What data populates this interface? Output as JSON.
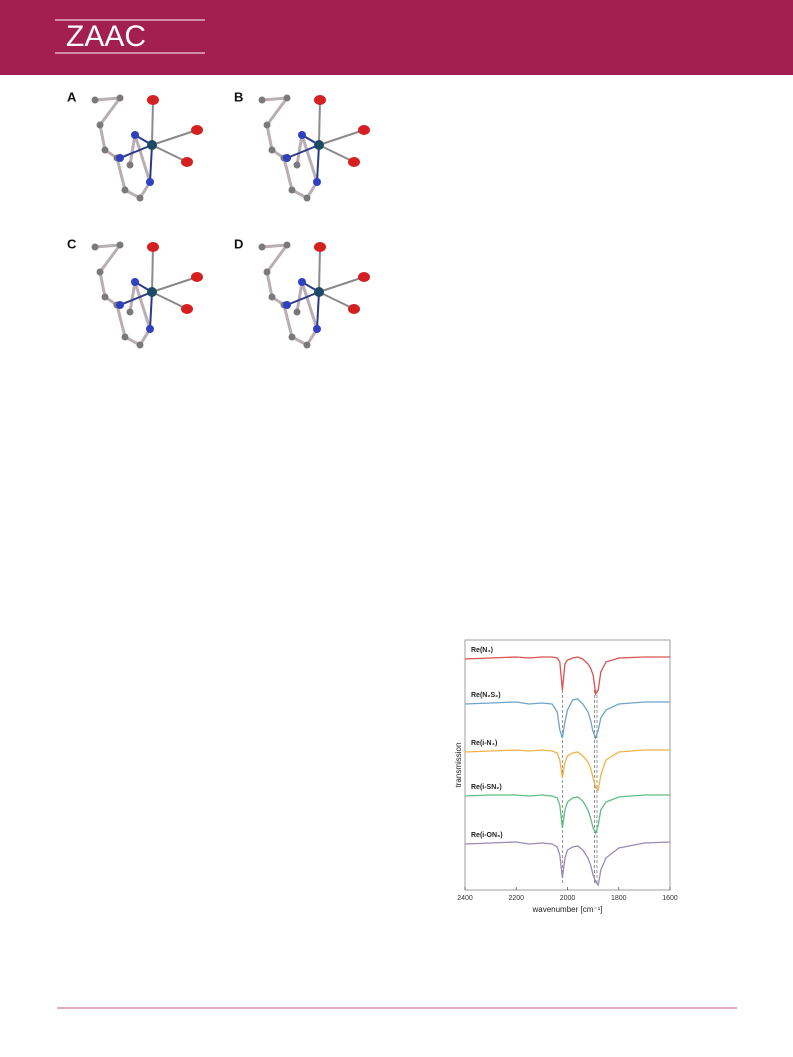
{
  "header": {
    "title": "ZAAC"
  },
  "figure_1": {
    "panels": [
      "A",
      "B",
      "C",
      "D"
    ]
  },
  "chart_data": {
    "type": "line",
    "x_label": "wavenumber [cm⁻¹]",
    "y_label": "transmission",
    "x": [
      2400,
      2300,
      2200,
      2150,
      2100,
      2060,
      2040,
      2030,
      2020,
      2010,
      2000,
      1980,
      1960,
      1940,
      1920,
      1910,
      1900,
      1890,
      1880,
      1870,
      1850,
      1800,
      1700,
      1600
    ],
    "xlim": [
      2400,
      1600
    ],
    "xticks": [
      2400,
      2200,
      2000,
      1800,
      1600
    ],
    "ylim": [
      0,
      250
    ],
    "reference_lines": [
      2020,
      1895,
      1885
    ],
    "series": [
      {
        "name": "Re(N₄)",
        "color": "#d9534f",
        "values": [
          231,
          232,
          233,
          232,
          233,
          233,
          232,
          228,
          200,
          226,
          230,
          232,
          233,
          231,
          226,
          222,
          215,
          196,
          200,
          218,
          228,
          232,
          233,
          233
        ]
      },
      {
        "name": "Re(N₂S₂)",
        "color": "#6fa3c8",
        "values": [
          186,
          187,
          188,
          186,
          187,
          186,
          178,
          160,
          152,
          168,
          180,
          190,
          191,
          186,
          178,
          170,
          158,
          152,
          160,
          172,
          180,
          186,
          188,
          188
        ]
      },
      {
        "name": "Re(i-N₄)",
        "color": "#f0b449",
        "values": [
          138,
          139,
          140,
          139,
          140,
          139,
          137,
          130,
          112,
          128,
          134,
          137,
          138,
          134,
          128,
          122,
          112,
          102,
          100,
          115,
          130,
          138,
          140,
          140
        ]
      },
      {
        "name": "Re(i-SN₂)",
        "color": "#5dbf7f",
        "values": [
          94,
          95,
          95,
          94,
          95,
          94,
          92,
          85,
          62,
          80,
          88,
          92,
          93,
          89,
          80,
          72,
          62,
          57,
          65,
          80,
          88,
          93,
          95,
          95
        ]
      },
      {
        "name": "Re(i-ON₃)",
        "color": "#9a8ab8",
        "values": [
          46,
          47,
          48,
          46,
          47,
          46,
          43,
          35,
          12,
          32,
          40,
          43,
          44,
          40,
          32,
          25,
          15,
          8,
          5,
          20,
          32,
          42,
          47,
          48
        ]
      }
    ]
  }
}
